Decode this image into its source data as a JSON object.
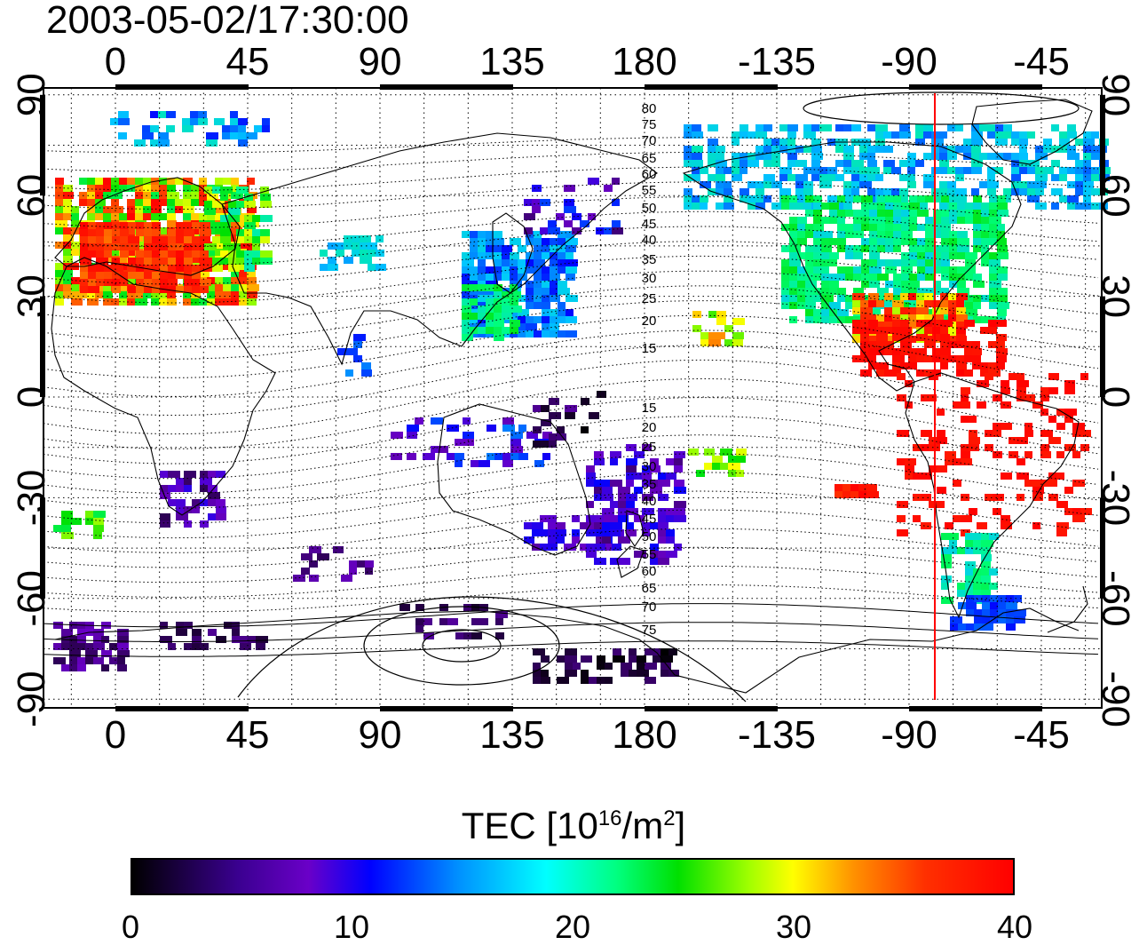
{
  "title": "2003-05-02/17:30:00",
  "map": {
    "lon_ticks_top": [
      "0",
      "45",
      "90",
      "135",
      "180",
      "-135",
      "-90",
      "-45"
    ],
    "lon_ticks_bottom": [
      "0",
      "45",
      "90",
      "135",
      "180",
      "-135",
      "-90",
      "-45"
    ],
    "lat_ticks_left": [
      "90",
      "60",
      "30",
      "0",
      "-30",
      "-60",
      "-90"
    ],
    "lat_ticks_right": [
      "90",
      "60",
      "30",
      "0",
      "-30",
      "-60",
      "-90"
    ],
    "contour_labels_north": [
      "80",
      "75",
      "70",
      "65",
      "60",
      "55",
      "50",
      "45",
      "40",
      "35",
      "30",
      "25",
      "20",
      "15"
    ],
    "contour_labels_south": [
      "15",
      "20",
      "25",
      "30",
      "35",
      "40",
      "45",
      "50",
      "55",
      "60",
      "65",
      "70",
      "75"
    ],
    "meridian_line_color": "#ff0000"
  },
  "colorbar": {
    "label_text": "TEC  [10",
    "label_exp1": "16",
    "label_mid": "/m",
    "label_exp2": "2",
    "label_end": "]",
    "ticks": [
      "0",
      "10",
      "20",
      "30",
      "40"
    ],
    "min": 0,
    "max": 40
  }
}
